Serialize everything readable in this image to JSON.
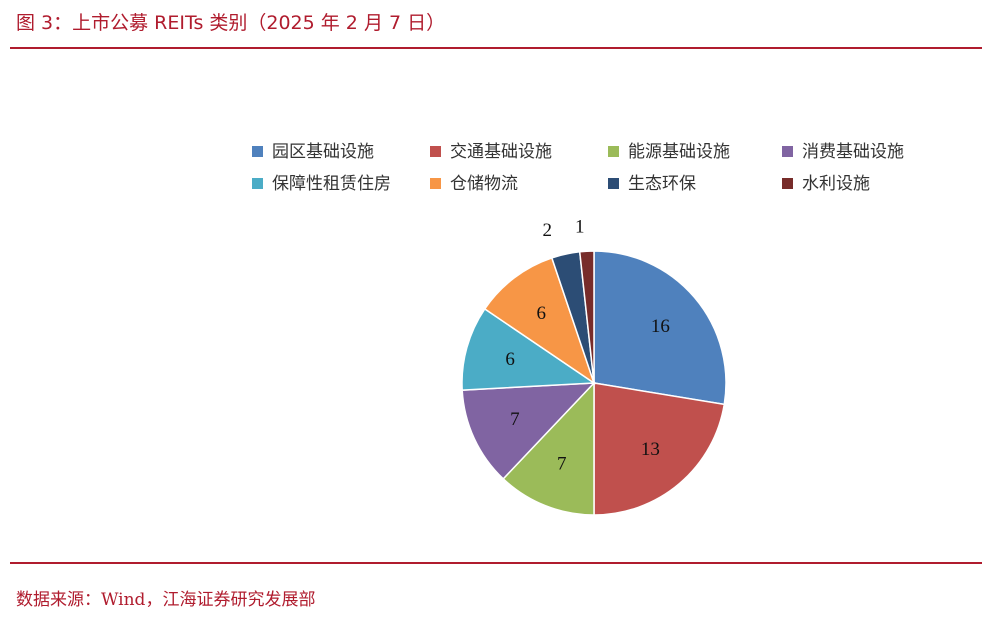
{
  "figure": {
    "title": "图 3：上市公募 REITs 类别（2025 年 2 月 7 日）",
    "source": "数据来源：Wind，江海证券研究发展部"
  },
  "chart_data": {
    "type": "pie",
    "start_angle_deg": 0,
    "direction": "clockwise",
    "legend_position": "top",
    "slices": [
      {
        "label": "园区基础设施",
        "value": 16,
        "color": "#4f81bd"
      },
      {
        "label": "交通基础设施",
        "value": 13,
        "color": "#c0504d"
      },
      {
        "label": "能源基础设施",
        "value": 7,
        "color": "#9bbb59"
      },
      {
        "label": "消费基础设施",
        "value": 7,
        "color": "#8064a2"
      },
      {
        "label": "保障性租赁住房",
        "value": 6,
        "color": "#4bacc6"
      },
      {
        "label": "仓储物流",
        "value": 6,
        "color": "#f79646"
      },
      {
        "label": "生态环保",
        "value": 2,
        "color": "#2c4d75"
      },
      {
        "label": "水利设施",
        "value": 1,
        "color": "#772c2a"
      }
    ]
  }
}
